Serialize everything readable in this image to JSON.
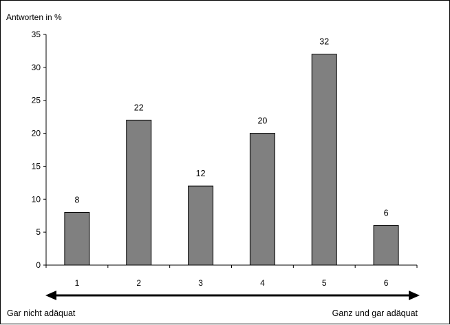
{
  "chart_data": {
    "type": "bar",
    "ylabel": "Antworten in %",
    "categories": [
      "1",
      "2",
      "3",
      "4",
      "5",
      "6"
    ],
    "values": [
      8,
      22,
      12,
      20,
      32,
      6
    ],
    "data_labels": [
      "8",
      "22",
      "12",
      "20",
      "32",
      "6"
    ],
    "ylim": [
      0,
      35
    ],
    "yticks": [
      "0",
      "5",
      "10",
      "15",
      "20",
      "25",
      "30",
      "35"
    ],
    "grid": false,
    "bar_color": "#808080",
    "scale_left_label": "Gar nicht adäquat",
    "scale_right_label": "Ganz und gar adäquat"
  }
}
